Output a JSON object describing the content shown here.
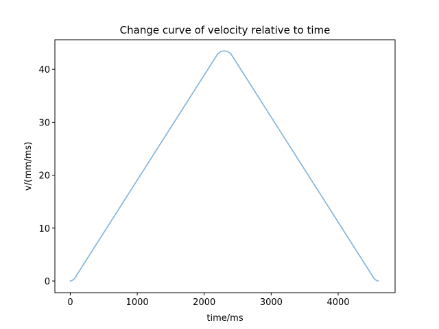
{
  "chart_data": {
    "type": "line",
    "title": "Change curve of velocity relative to time",
    "xlabel": "time/ms",
    "ylabel": "v/(mm/ms)",
    "xlim": [
      -230,
      4850
    ],
    "ylim": [
      -2.2,
      45.6
    ],
    "x_ticks": [
      0,
      1000,
      2000,
      3000,
      4000
    ],
    "y_ticks": [
      0,
      10,
      20,
      30,
      40
    ],
    "x_tick_labels": [
      "0",
      "1000",
      "2000",
      "3000",
      "4000"
    ],
    "y_tick_labels": [
      "0",
      "10",
      "20",
      "30",
      "40"
    ],
    "grid": false,
    "series": [
      {
        "color": "#8ab8dc",
        "x": [
          0,
          25,
          50,
          75,
          100,
          2200,
          2250,
          2300,
          2350,
          2400,
          4500,
          4525,
          4550,
          4575,
          4600
        ],
        "y": [
          0,
          0.1,
          0.3,
          0.65,
          1.2,
          42.9,
          43.4,
          43.5,
          43.4,
          42.9,
          1.2,
          0.65,
          0.3,
          0.1,
          0
        ]
      }
    ]
  }
}
